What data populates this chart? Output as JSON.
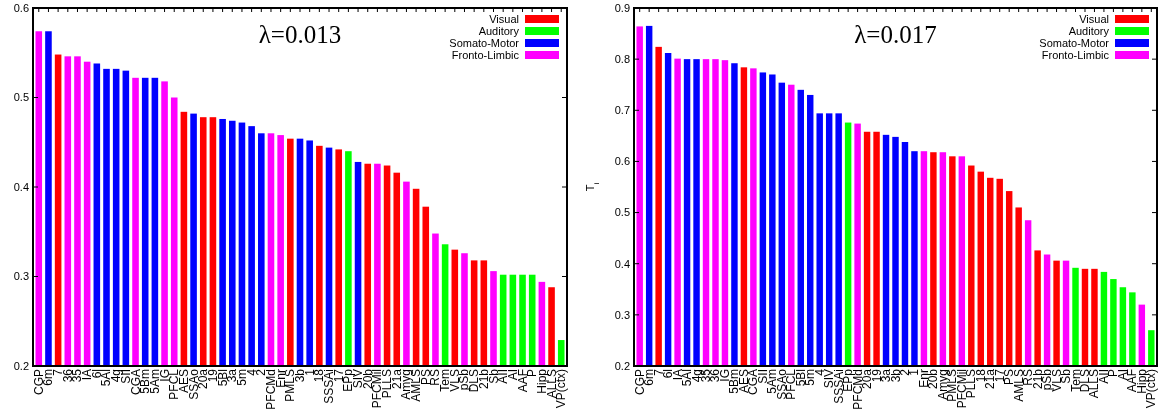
{
  "chart_data": [
    {
      "type": "bar",
      "title": "λ=0.013",
      "legend": "top right",
      "ylim": [
        0.2,
        0.6
      ],
      "yticks": [
        0.2,
        0.3,
        0.4,
        0.5,
        0.6
      ],
      "categories": [
        "CGP",
        "6m",
        "7",
        "36",
        "35",
        "IA",
        "6l",
        "5Al",
        "4g",
        "SII",
        "CGA",
        "5Bm",
        "5Am",
        "IG",
        "PFCL",
        "AES",
        "SSAo",
        "20a",
        "19",
        "5Bl",
        "3a",
        "5m",
        "4",
        "2",
        "PFCMd",
        "Enr",
        "PMLS",
        "3b",
        "1",
        "18",
        "SSSAi",
        "17",
        "EPp",
        "SIV",
        "20b",
        "PFCMil",
        "PLLS",
        "21a",
        "Amyg",
        "AMLS",
        "PS",
        "RS",
        "Tem",
        "VLS",
        "pSb",
        "DLS",
        "21b",
        "Sb",
        "AII",
        "AI",
        "AAF",
        "P",
        "Hipp",
        "ALLS",
        "VP(ctx)"
      ],
      "series": [
        {
          "name": "Visual",
          "color": "#ff0000",
          "values": [
            null,
            null,
            0.548,
            null,
            null,
            null,
            null,
            null,
            null,
            null,
            null,
            null,
            null,
            null,
            null,
            0.484,
            null,
            0.478,
            0.478,
            null,
            null,
            null,
            null,
            null,
            null,
            null,
            0.454,
            null,
            null,
            0.446,
            null,
            0.442,
            null,
            null,
            0.426,
            null,
            0.424,
            0.416,
            null,
            0.398,
            0.378,
            null,
            null,
            0.33,
            null,
            0.318,
            0.318,
            null,
            null,
            null,
            null,
            null,
            null,
            0.288,
            null
          ]
        },
        {
          "name": "Auditory",
          "color": "#00ff00",
          "values": [
            null,
            null,
            null,
            null,
            null,
            null,
            null,
            null,
            null,
            null,
            null,
            null,
            null,
            null,
            null,
            null,
            null,
            null,
            null,
            null,
            null,
            null,
            null,
            null,
            null,
            null,
            null,
            null,
            null,
            null,
            null,
            null,
            0.44,
            null,
            null,
            null,
            null,
            null,
            null,
            null,
            null,
            null,
            0.336,
            null,
            null,
            null,
            null,
            null,
            0.302,
            0.302,
            0.302,
            0.302,
            null,
            null,
            0.229
          ]
        },
        {
          "name": "Somato-Motor",
          "color": "#0000ff",
          "values": [
            null,
            0.574,
            null,
            null,
            null,
            null,
            0.538,
            0.532,
            0.532,
            0.53,
            null,
            0.522,
            0.522,
            null,
            null,
            null,
            0.482,
            null,
            null,
            0.476,
            0.474,
            0.472,
            0.468,
            0.46,
            null,
            null,
            null,
            0.454,
            0.452,
            null,
            0.444,
            null,
            null,
            0.428,
            null,
            null,
            null,
            null,
            null,
            null,
            null,
            null,
            null,
            null,
            null,
            null,
            null,
            null,
            null,
            null,
            null,
            null,
            null,
            null,
            null
          ]
        },
        {
          "name": "Fronto-Limbic",
          "color": "#ff00ff",
          "values": [
            0.574,
            null,
            null,
            0.546,
            0.546,
            0.54,
            null,
            null,
            null,
            null,
            0.522,
            null,
            null,
            0.518,
            0.5,
            null,
            null,
            null,
            null,
            null,
            null,
            null,
            null,
            null,
            0.46,
            0.458,
            null,
            null,
            null,
            null,
            null,
            null,
            null,
            null,
            null,
            0.426,
            null,
            null,
            0.406,
            null,
            null,
            0.348,
            null,
            null,
            0.326,
            null,
            null,
            0.306,
            null,
            null,
            null,
            null,
            0.294,
            null,
            null
          ]
        }
      ]
    },
    {
      "type": "bar",
      "title": "λ=0.017",
      "ylabel": "T$_{i}$",
      "legend": "top right",
      "ylim": [
        0.2,
        0.9
      ],
      "yticks": [
        0.2,
        0.3,
        0.4,
        0.5,
        0.6,
        0.7,
        0.8,
        0.9
      ],
      "categories": [
        "CGP",
        "6m",
        "7",
        "6l",
        "IA",
        "5Al",
        "4g",
        "35",
        "36",
        "IG",
        "5Bm",
        "AES",
        "CGA",
        "SII",
        "5Am",
        "SSAo",
        "PFCL",
        "5Bl",
        "5m",
        "4",
        "SIV",
        "SSSAi",
        "EPp",
        "PFCMd",
        "20a",
        "19",
        "3a",
        "3b",
        "2",
        "1",
        "Enr",
        "20b",
        "Amyg",
        "PMLS",
        "PFCMil",
        "PLLS",
        "18",
        "21a",
        "17",
        "PS",
        "AMLS",
        "RS",
        "21b",
        "pSb",
        "VLS",
        "Sb",
        "Tem",
        "DLS",
        "ALLS",
        "AII",
        "P",
        "AI",
        "AAF",
        "Hipp",
        "VP(ctx)"
      ],
      "series": [
        {
          "name": "Visual",
          "color": "#ff0000",
          "values": [
            null,
            null,
            0.824,
            null,
            null,
            null,
            null,
            null,
            null,
            null,
            null,
            0.784,
            null,
            null,
            null,
            null,
            null,
            null,
            null,
            null,
            null,
            null,
            null,
            null,
            0.658,
            0.658,
            null,
            null,
            null,
            null,
            null,
            0.618,
            null,
            0.61,
            null,
            0.592,
            0.58,
            0.568,
            0.566,
            0.542,
            0.51,
            null,
            0.426,
            null,
            0.406,
            null,
            null,
            0.39,
            0.39,
            null,
            null,
            null,
            null,
            null,
            null
          ]
        },
        {
          "name": "Auditory",
          "color": "#00ff00",
          "values": [
            null,
            null,
            null,
            null,
            null,
            null,
            null,
            null,
            null,
            null,
            null,
            null,
            null,
            null,
            null,
            null,
            null,
            null,
            null,
            null,
            null,
            null,
            0.676,
            null,
            null,
            null,
            null,
            null,
            null,
            null,
            null,
            null,
            null,
            null,
            null,
            null,
            null,
            null,
            null,
            null,
            null,
            null,
            null,
            null,
            null,
            null,
            0.392,
            null,
            null,
            0.384,
            0.37,
            0.354,
            0.344,
            null,
            0.27
          ]
        },
        {
          "name": "Somato-Motor",
          "color": "#0000ff",
          "values": [
            null,
            0.865,
            null,
            0.812,
            null,
            0.8,
            0.8,
            null,
            null,
            null,
            0.792,
            null,
            null,
            0.774,
            0.77,
            0.754,
            null,
            0.74,
            0.73,
            0.694,
            0.694,
            0.694,
            null,
            null,
            null,
            null,
            0.652,
            0.648,
            0.638,
            0.62,
            null,
            null,
            null,
            null,
            null,
            null,
            null,
            null,
            null,
            null,
            null,
            null,
            null,
            null,
            null,
            null,
            null,
            null,
            null,
            null,
            null,
            null,
            null,
            null,
            null
          ]
        },
        {
          "name": "Fronto-Limbic",
          "color": "#ff00ff",
          "values": [
            0.864,
            null,
            null,
            null,
            0.801,
            null,
            null,
            0.8,
            0.8,
            0.798,
            null,
            null,
            0.782,
            null,
            null,
            null,
            0.75,
            null,
            null,
            null,
            null,
            null,
            null,
            0.674,
            null,
            null,
            null,
            null,
            null,
            null,
            0.62,
            null,
            0.618,
            null,
            0.61,
            null,
            null,
            null,
            null,
            null,
            null,
            0.485,
            null,
            0.418,
            null,
            0.406,
            null,
            null,
            null,
            null,
            null,
            null,
            null,
            0.32,
            null
          ]
        }
      ]
    }
  ]
}
